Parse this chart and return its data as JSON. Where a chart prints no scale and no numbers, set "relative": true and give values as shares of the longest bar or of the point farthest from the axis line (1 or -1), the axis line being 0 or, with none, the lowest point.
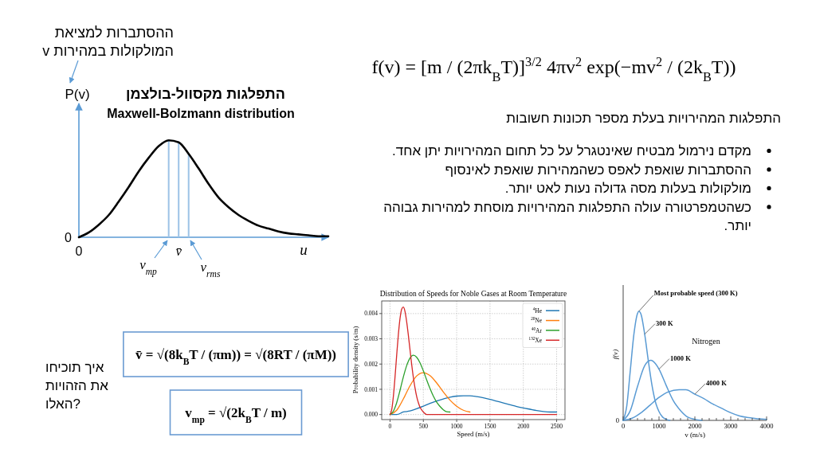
{
  "chart_data": [
    {
      "type": "line",
      "title": "התפלגות מקסוול-בולצמן",
      "subtitle": "Maxwell-Bolzmann distribution",
      "ylabel": "P(v)",
      "xlabel": "u",
      "relative": true,
      "categories": [
        "0",
        null,
        null,
        null,
        null,
        null,
        null,
        null,
        null,
        null,
        "v̄",
        null,
        null,
        null,
        null,
        null,
        null,
        null,
        null,
        null,
        null,
        null,
        null,
        null,
        null,
        null
      ],
      "series": [
        {
          "type": "bar",
          "color": "#9dc3e6",
          "values": [
            null,
            null,
            null,
            null,
            null,
            null,
            null,
            null,
            null,
            1,
            0.98,
            0.86,
            null,
            null,
            null,
            null,
            null,
            null,
            null,
            null,
            null,
            null,
            null,
            null,
            null,
            null
          ]
        },
        {
          "color": "#000000",
          "values": [
            0,
            0.05,
            0.13,
            0.23,
            0.37,
            0.52,
            0.68,
            0.82,
            0.94,
            1,
            0.98,
            0.86,
            0.71,
            0.55,
            0.41,
            0.31,
            0.23,
            0.17,
            0.12,
            0.09,
            0.06,
            0.04,
            0.03,
            0.02,
            0.01,
            0.01
          ]
        }
      ],
      "annotations": [
        "ההסתברות למציאת המולקולות במהירות v",
        "0",
        "v$_{mp}$",
        "v$_{rms}$"
      ]
    },
    {
      "type": "other",
      "title": "f(v) = [m / (2πk$_{B}$T)]$^{3/2}$ 4πv$^{2}$ exp(−mv$^{2}$ / (2k$_{B}$T))",
      "subtitle": "התפלגות המהירויות בעלת מספר תכונות חשובות",
      "annotations": [
        "מקדם נירמול מבטיח שאינטגרל על כל תחום המהירויות יתן אחד.",
        "ההסתברות שואפת לאפס כשהמהירות שואפת לאינסוף",
        "מולקולות בעלות מסה גדולה נעות לאט יותר.",
        "כשהטמפרטורה עולה התפלגות המהירויות מוסחת למהירות גבוהה יותר."
      ]
    },
    {
      "type": "other",
      "title": "איך תוכיחו את הזהויות האלו?",
      "annotations": [
        "v̄ = √(8k$_{B}$T / (πm)) = √(8RT / (πM))",
        "v$_{mp}$ = √(2k$_{B}$T / m)"
      ]
    },
    {
      "type": "line",
      "title": "Distribution of Speeds for Noble Gases at Room Temperature",
      "xlabel": "Speed (m/s)",
      "ylabel": "Probability density (s/m)",
      "xlim": [
        -125,
        2625
      ],
      "xticks": [
        0,
        500,
        1000,
        1500,
        2000,
        2500
      ],
      "ylim": [
        -0.0002,
        0.0045
      ],
      "yticks": [
        {
          "value": 0,
          "label": "0.000"
        },
        {
          "value": 0.001,
          "label": "0.001"
        },
        {
          "value": 0.002,
          "label": "0.002"
        },
        {
          "value": 0.003,
          "label": "0.003"
        },
        {
          "value": 0.004,
          "label": "0.004"
        }
      ],
      "grid": true,
      "legend": "top right",
      "series": [
        {
          "name": "$^{4}$He",
          "color": "#1f77b4",
          "x": [
            0,
            100,
            200,
            300,
            400,
            500,
            600,
            700,
            800,
            900,
            1000,
            1100,
            1200,
            1300,
            1400,
            1500,
            1600,
            1700,
            1800,
            1900,
            2000,
            2100,
            2200,
            2300,
            2400,
            2500
          ],
          "values": [
            0,
            0,
            0.0001,
            0.00014,
            0.00023,
            0.00033,
            0.00044,
            0.00054,
            0.00062,
            0.00069,
            0.00073,
            0.00074,
            0.00074,
            0.00071,
            0.00066,
            0.0006,
            0.00053,
            0.00046,
            0.00039,
            0.00032,
            0.00026,
            0.00021,
            0.00016,
            0.00012,
            0.0001,
            0.0001
          ]
        },
        {
          "name": "$^{20}$Ne",
          "color": "#ff7f0e",
          "x": [
            0,
            100,
            200,
            300,
            400,
            500,
            600,
            700,
            800,
            900,
            1000,
            1100,
            1200
          ],
          "values": [
            0,
            0.00017,
            0.00062,
            0.00114,
            0.00153,
            0.00166,
            0.00154,
            0.00125,
            0.00089,
            0.00057,
            0.00033,
            0.00017,
            0.0001
          ]
        },
        {
          "name": "$^{40}$Ar",
          "color": "#2ca02c",
          "x": [
            0,
            50,
            100,
            150,
            200,
            250,
            300,
            350,
            400,
            450,
            500,
            550,
            600,
            650,
            700,
            750,
            800,
            850,
            900
          ],
          "values": [
            0,
            0.00013,
            0.00047,
            0.00096,
            0.00149,
            0.00194,
            0.00224,
            0.00235,
            0.00227,
            0.00205,
            0.00173,
            0.00137,
            0.00103,
            0.00073,
            0.00049,
            0.00032,
            0.00019,
            0.00011,
            0.0001
          ]
        },
        {
          "name": "$^{132}$Xe",
          "color": "#d62728",
          "x": [
            0,
            25,
            50,
            75,
            100,
            125,
            150,
            175,
            200,
            225,
            250,
            275,
            300,
            325,
            350,
            375,
            400,
            425,
            450,
            475,
            500,
            550,
            600,
            700,
            2500
          ],
          "values": [
            0,
            0.00019,
            0.00072,
            0.00149,
            0.00236,
            0.00317,
            0.00381,
            0.00418,
            0.00426,
            0.00408,
            0.00367,
            0.00314,
            0.00256,
            0.00198,
            0.00147,
            0.00105,
            0.00071,
            0.00047,
            0.00029,
            0.00018,
            0.0001,
            0,
            0,
            0,
            0
          ]
        }
      ]
    },
    {
      "type": "line",
      "title": "Nitrogen",
      "xlabel": "v (m/s)",
      "ylabel": "f(v)",
      "relative": true,
      "xlim": [
        0,
        4000
      ],
      "xticks": [
        0,
        {
          "value": 200,
          "label": null
        },
        {
          "value": 400,
          "label": null
        },
        {
          "value": 600,
          "label": null
        },
        {
          "value": 800,
          "label": null
        },
        1000,
        {
          "value": 1200,
          "label": null
        },
        {
          "value": 1400,
          "label": null
        },
        {
          "value": 1600,
          "label": null
        },
        {
          "value": 1800,
          "label": null
        },
        2000,
        {
          "value": 2200,
          "label": null
        },
        {
          "value": 2400,
          "label": null
        },
        {
          "value": 2600,
          "label": null
        },
        {
          "value": 2800,
          "label": null
        },
        3000,
        {
          "value": 3200,
          "label": null
        },
        {
          "value": 3400,
          "label": null
        },
        {
          "value": 3600,
          "label": null
        },
        {
          "value": 3800,
          "label": null
        },
        4000
      ],
      "series": [
        {
          "name": "300 K",
          "color": "#5a9bd4",
          "x": [
            0,
            100,
            200,
            300,
            400,
            440,
            500,
            600,
            700,
            800,
            900,
            1000,
            1100,
            1200,
            1300
          ],
          "values": [
            0,
            0.13,
            0.46,
            0.79,
            0.98,
            1,
            0.97,
            0.79,
            0.55,
            0.33,
            0.17,
            0.08,
            0.03,
            0.01,
            0
          ]
        },
        {
          "name": "1000 K",
          "color": "#5a9bd4",
          "x": [
            0,
            200,
            400,
            600,
            770,
            900,
            1000,
            1200,
            1400,
            1600,
            1800,
            2000,
            2200
          ],
          "values": [
            0,
            0.09,
            0.31,
            0.5,
            0.55,
            0.52,
            0.47,
            0.32,
            0.18,
            0.09,
            0.03,
            0.01,
            0
          ]
        },
        {
          "name": "4000 K",
          "color": "#5a9bd4",
          "x": [
            0,
            250,
            500,
            750,
            1000,
            1250,
            1560,
            1750,
            2000,
            2250,
            2500,
            2750,
            3000,
            3250,
            3500,
            3750,
            4000
          ],
          "values": [
            0,
            0.02,
            0.07,
            0.14,
            0.21,
            0.26,
            0.28,
            0.28,
            0.24,
            0.2,
            0.15,
            0.11,
            0.07,
            0.04,
            0.025,
            0.015,
            0.01
          ]
        }
      ],
      "annotations": [
        {
          "text": "Most probable speed (300 K)",
          "x": 440,
          "y": 1
        },
        "0"
      ]
    }
  ]
}
